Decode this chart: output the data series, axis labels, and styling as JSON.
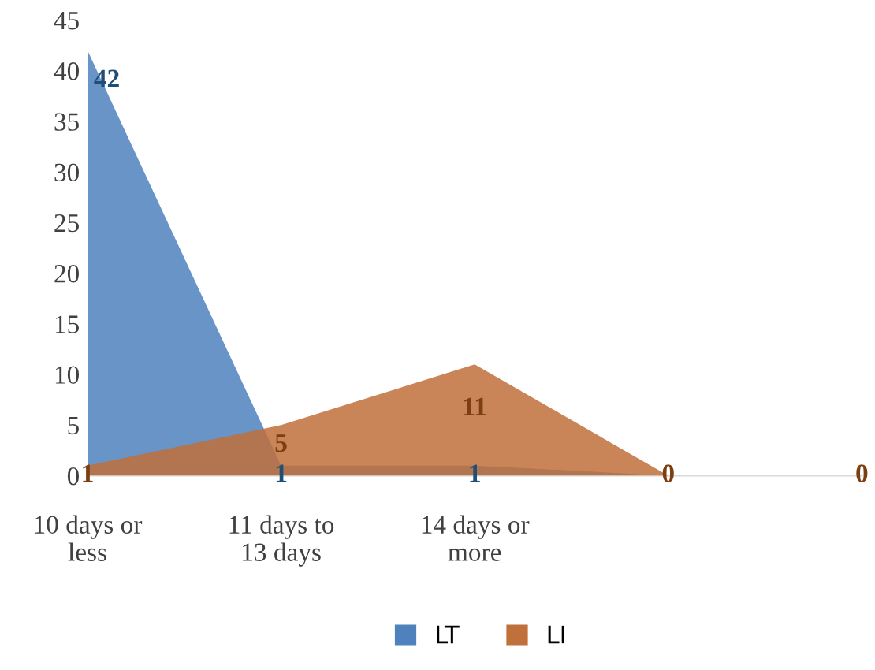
{
  "chart_data": {
    "type": "area",
    "categories": [
      "10 days or\nless",
      "11 days to\n13 days",
      "14 days or\nmore",
      null,
      null
    ],
    "series": [
      {
        "name": "LT",
        "color": "#4f81bd",
        "values": [
          42,
          1,
          1,
          0,
          0
        ],
        "value_labels": [
          "42",
          "1",
          "1",
          null,
          null
        ]
      },
      {
        "name": "LI",
        "color": "#c0703a",
        "values": [
          1,
          5,
          11,
          0,
          0
        ],
        "value_labels": [
          "1",
          "5",
          "11",
          "0",
          "0"
        ]
      }
    ],
    "ylim": [
      0,
      45
    ],
    "yticks": [
      0,
      5,
      10,
      15,
      20,
      25,
      30,
      35,
      40,
      45
    ],
    "grid": false,
    "legend": "bottom"
  }
}
